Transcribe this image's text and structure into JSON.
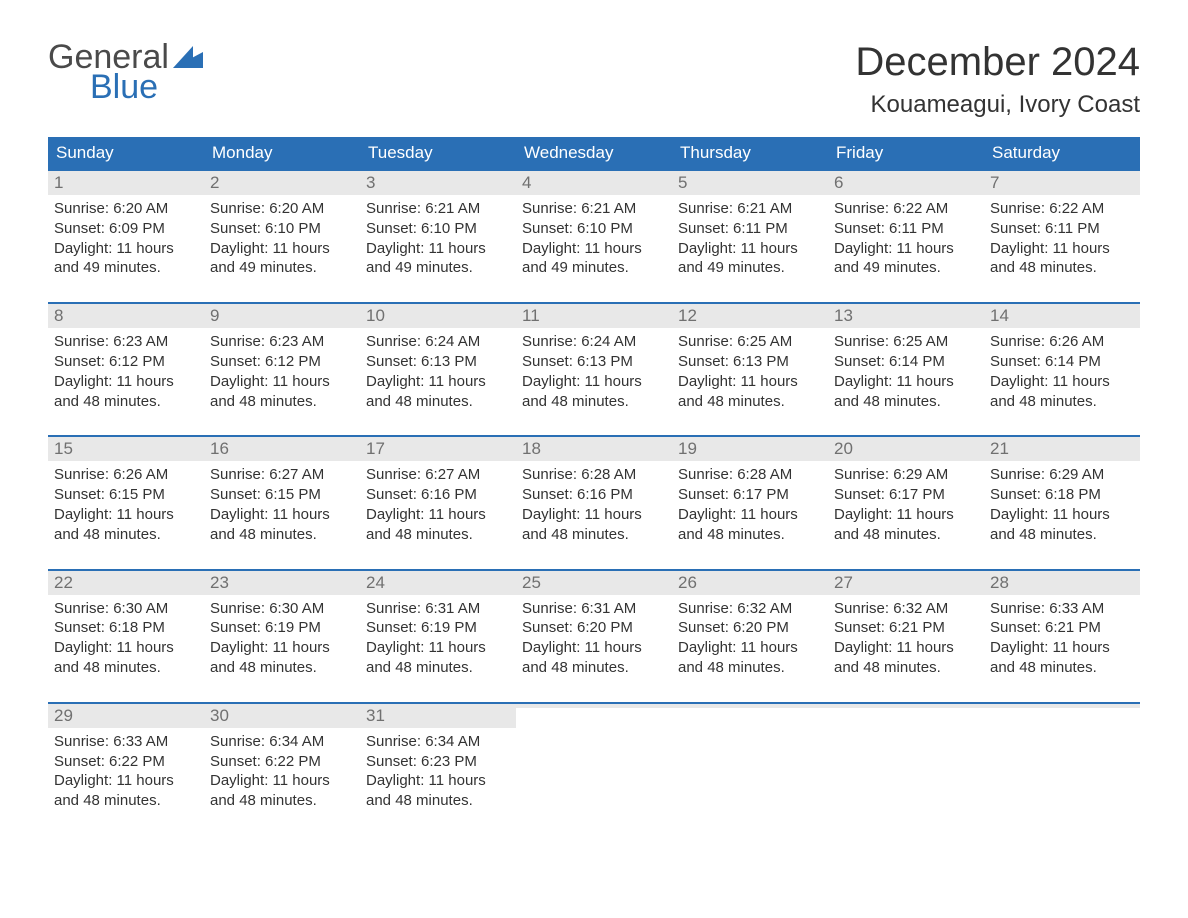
{
  "brand": {
    "word1": "General",
    "word2": "Blue",
    "word1_color": "#4a4a4a",
    "word2_color": "#2a6fb5",
    "icon_color": "#2a6fb5"
  },
  "title": {
    "month": "December 2024",
    "location": "Kouameagui, Ivory Coast"
  },
  "colors": {
    "header_bg": "#2a6fb5",
    "header_text": "#ffffff",
    "daynum_bg": "#e8e8e8",
    "daynum_text": "#707070",
    "body_text": "#333333",
    "week_border": "#2a6fb5",
    "page_bg": "#ffffff"
  },
  "typography": {
    "title_fontsize": 40,
    "location_fontsize": 24,
    "dayheader_fontsize": 17,
    "daynum_fontsize": 17,
    "body_fontsize": 15,
    "font_family": "Arial, Helvetica, sans-serif"
  },
  "day_headers": [
    "Sunday",
    "Monday",
    "Tuesday",
    "Wednesday",
    "Thursday",
    "Friday",
    "Saturday"
  ],
  "weeks": [
    [
      {
        "n": "1",
        "sunrise": "Sunrise: 6:20 AM",
        "sunset": "Sunset: 6:09 PM",
        "d1": "Daylight: 11 hours",
        "d2": "and 49 minutes."
      },
      {
        "n": "2",
        "sunrise": "Sunrise: 6:20 AM",
        "sunset": "Sunset: 6:10 PM",
        "d1": "Daylight: 11 hours",
        "d2": "and 49 minutes."
      },
      {
        "n": "3",
        "sunrise": "Sunrise: 6:21 AM",
        "sunset": "Sunset: 6:10 PM",
        "d1": "Daylight: 11 hours",
        "d2": "and 49 minutes."
      },
      {
        "n": "4",
        "sunrise": "Sunrise: 6:21 AM",
        "sunset": "Sunset: 6:10 PM",
        "d1": "Daylight: 11 hours",
        "d2": "and 49 minutes."
      },
      {
        "n": "5",
        "sunrise": "Sunrise: 6:21 AM",
        "sunset": "Sunset: 6:11 PM",
        "d1": "Daylight: 11 hours",
        "d2": "and 49 minutes."
      },
      {
        "n": "6",
        "sunrise": "Sunrise: 6:22 AM",
        "sunset": "Sunset: 6:11 PM",
        "d1": "Daylight: 11 hours",
        "d2": "and 49 minutes."
      },
      {
        "n": "7",
        "sunrise": "Sunrise: 6:22 AM",
        "sunset": "Sunset: 6:11 PM",
        "d1": "Daylight: 11 hours",
        "d2": "and 48 minutes."
      }
    ],
    [
      {
        "n": "8",
        "sunrise": "Sunrise: 6:23 AM",
        "sunset": "Sunset: 6:12 PM",
        "d1": "Daylight: 11 hours",
        "d2": "and 48 minutes."
      },
      {
        "n": "9",
        "sunrise": "Sunrise: 6:23 AM",
        "sunset": "Sunset: 6:12 PM",
        "d1": "Daylight: 11 hours",
        "d2": "and 48 minutes."
      },
      {
        "n": "10",
        "sunrise": "Sunrise: 6:24 AM",
        "sunset": "Sunset: 6:13 PM",
        "d1": "Daylight: 11 hours",
        "d2": "and 48 minutes."
      },
      {
        "n": "11",
        "sunrise": "Sunrise: 6:24 AM",
        "sunset": "Sunset: 6:13 PM",
        "d1": "Daylight: 11 hours",
        "d2": "and 48 minutes."
      },
      {
        "n": "12",
        "sunrise": "Sunrise: 6:25 AM",
        "sunset": "Sunset: 6:13 PM",
        "d1": "Daylight: 11 hours",
        "d2": "and 48 minutes."
      },
      {
        "n": "13",
        "sunrise": "Sunrise: 6:25 AM",
        "sunset": "Sunset: 6:14 PM",
        "d1": "Daylight: 11 hours",
        "d2": "and 48 minutes."
      },
      {
        "n": "14",
        "sunrise": "Sunrise: 6:26 AM",
        "sunset": "Sunset: 6:14 PM",
        "d1": "Daylight: 11 hours",
        "d2": "and 48 minutes."
      }
    ],
    [
      {
        "n": "15",
        "sunrise": "Sunrise: 6:26 AM",
        "sunset": "Sunset: 6:15 PM",
        "d1": "Daylight: 11 hours",
        "d2": "and 48 minutes."
      },
      {
        "n": "16",
        "sunrise": "Sunrise: 6:27 AM",
        "sunset": "Sunset: 6:15 PM",
        "d1": "Daylight: 11 hours",
        "d2": "and 48 minutes."
      },
      {
        "n": "17",
        "sunrise": "Sunrise: 6:27 AM",
        "sunset": "Sunset: 6:16 PM",
        "d1": "Daylight: 11 hours",
        "d2": "and 48 minutes."
      },
      {
        "n": "18",
        "sunrise": "Sunrise: 6:28 AM",
        "sunset": "Sunset: 6:16 PM",
        "d1": "Daylight: 11 hours",
        "d2": "and 48 minutes."
      },
      {
        "n": "19",
        "sunrise": "Sunrise: 6:28 AM",
        "sunset": "Sunset: 6:17 PM",
        "d1": "Daylight: 11 hours",
        "d2": "and 48 minutes."
      },
      {
        "n": "20",
        "sunrise": "Sunrise: 6:29 AM",
        "sunset": "Sunset: 6:17 PM",
        "d1": "Daylight: 11 hours",
        "d2": "and 48 minutes."
      },
      {
        "n": "21",
        "sunrise": "Sunrise: 6:29 AM",
        "sunset": "Sunset: 6:18 PM",
        "d1": "Daylight: 11 hours",
        "d2": "and 48 minutes."
      }
    ],
    [
      {
        "n": "22",
        "sunrise": "Sunrise: 6:30 AM",
        "sunset": "Sunset: 6:18 PM",
        "d1": "Daylight: 11 hours",
        "d2": "and 48 minutes."
      },
      {
        "n": "23",
        "sunrise": "Sunrise: 6:30 AM",
        "sunset": "Sunset: 6:19 PM",
        "d1": "Daylight: 11 hours",
        "d2": "and 48 minutes."
      },
      {
        "n": "24",
        "sunrise": "Sunrise: 6:31 AM",
        "sunset": "Sunset: 6:19 PM",
        "d1": "Daylight: 11 hours",
        "d2": "and 48 minutes."
      },
      {
        "n": "25",
        "sunrise": "Sunrise: 6:31 AM",
        "sunset": "Sunset: 6:20 PM",
        "d1": "Daylight: 11 hours",
        "d2": "and 48 minutes."
      },
      {
        "n": "26",
        "sunrise": "Sunrise: 6:32 AM",
        "sunset": "Sunset: 6:20 PM",
        "d1": "Daylight: 11 hours",
        "d2": "and 48 minutes."
      },
      {
        "n": "27",
        "sunrise": "Sunrise: 6:32 AM",
        "sunset": "Sunset: 6:21 PM",
        "d1": "Daylight: 11 hours",
        "d2": "and 48 minutes."
      },
      {
        "n": "28",
        "sunrise": "Sunrise: 6:33 AM",
        "sunset": "Sunset: 6:21 PM",
        "d1": "Daylight: 11 hours",
        "d2": "and 48 minutes."
      }
    ],
    [
      {
        "n": "29",
        "sunrise": "Sunrise: 6:33 AM",
        "sunset": "Sunset: 6:22 PM",
        "d1": "Daylight: 11 hours",
        "d2": "and 48 minutes."
      },
      {
        "n": "30",
        "sunrise": "Sunrise: 6:34 AM",
        "sunset": "Sunset: 6:22 PM",
        "d1": "Daylight: 11 hours",
        "d2": "and 48 minutes."
      },
      {
        "n": "31",
        "sunrise": "Sunrise: 6:34 AM",
        "sunset": "Sunset: 6:23 PM",
        "d1": "Daylight: 11 hours",
        "d2": "and 48 minutes."
      },
      {
        "empty": true
      },
      {
        "empty": true
      },
      {
        "empty": true
      },
      {
        "empty": true
      }
    ]
  ]
}
